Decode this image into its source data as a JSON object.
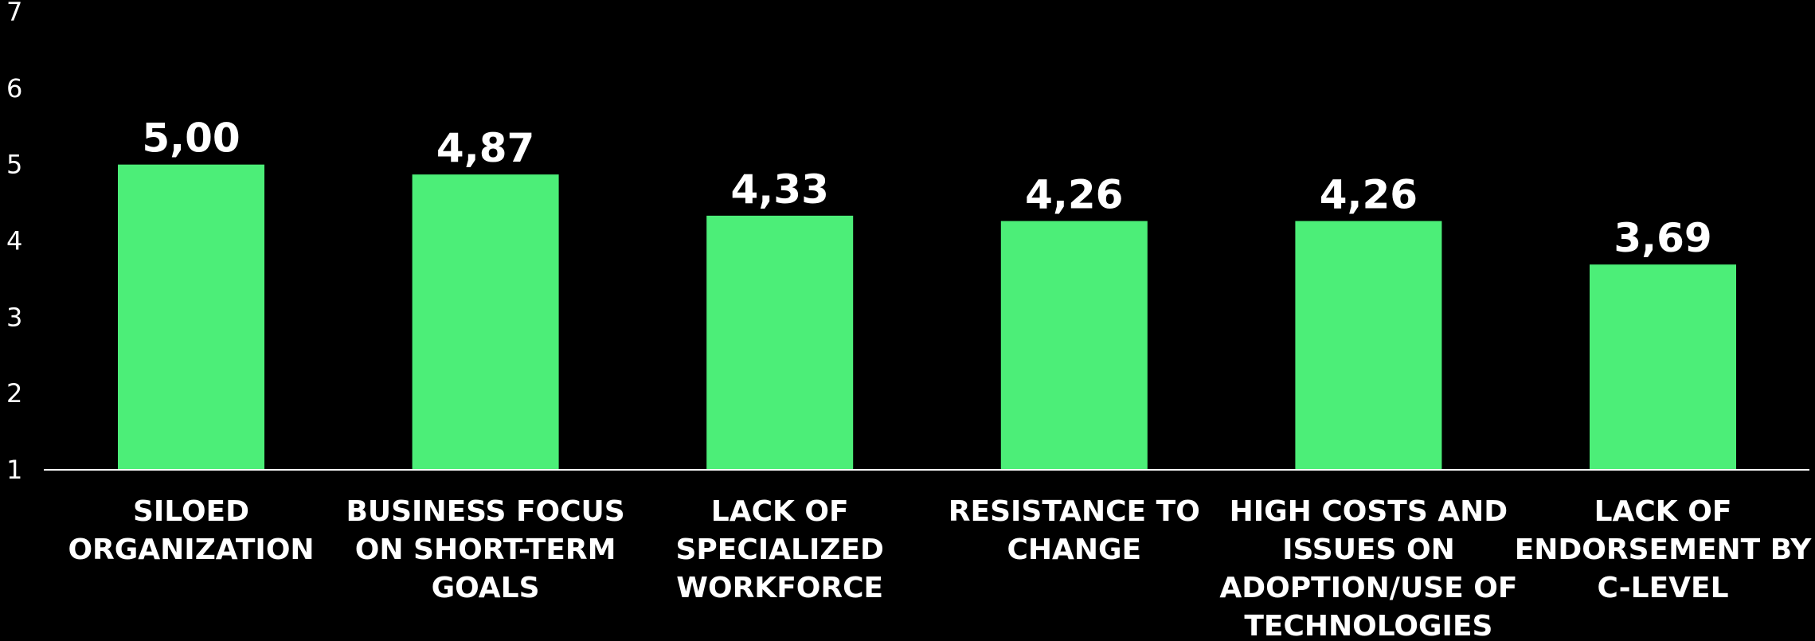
{
  "chart_data": {
    "type": "bar",
    "title": "",
    "xlabel": "",
    "ylabel": "",
    "ylim": [
      1,
      7
    ],
    "yticks": [
      "1",
      "2",
      "3",
      "4",
      "5",
      "6",
      "7"
    ],
    "grid": false,
    "categories": [
      [
        "SILOED",
        "ORGANIZATION"
      ],
      [
        "BUSINESS FOCUS",
        "ON SHORT-TERM",
        "GOALS"
      ],
      [
        "LACK OF",
        "SPECIALIZED",
        "WORKFORCE"
      ],
      [
        "RESISTANCE TO",
        "CHANGE"
      ],
      [
        "HIGH COSTS AND",
        "ISSUES ON",
        "ADOPTION/USE OF",
        "TECHNOLOGIES"
      ],
      [
        "LACK OF",
        "ENDORSEMENT BY",
        "C-LEVEL"
      ]
    ],
    "values": [
      5.0,
      4.87,
      4.33,
      4.26,
      4.26,
      3.69
    ],
    "value_labels": [
      "5,00",
      "4,87",
      "4,33",
      "4,26",
      "4,26",
      "3,69"
    ],
    "colors": {
      "bar": "#4cee78",
      "background": "#000000",
      "text": "#ffffff",
      "axis": "#ffffff"
    }
  }
}
